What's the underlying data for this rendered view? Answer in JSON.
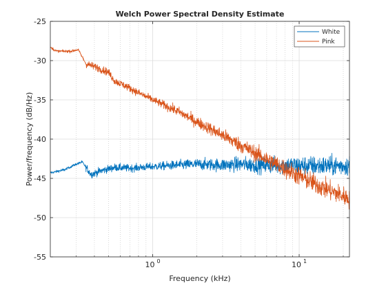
{
  "chart_data": {
    "type": "line",
    "title": "Welch Power Spectral Density Estimate",
    "xlabel": "Frequency (kHz)",
    "ylabel": "Power/frequency (dB/Hz)",
    "x_scale": "log",
    "xlim": [
      0.2,
      22.05
    ],
    "ylim": [
      -55,
      -25
    ],
    "y_ticks": [
      -25,
      -30,
      -35,
      -40,
      -45,
      -50,
      -55
    ],
    "y_tick_labels": [
      "-25",
      "-30",
      "-35",
      "-40",
      "-45",
      "-50",
      "-55"
    ],
    "x_ticks": [
      1,
      10
    ],
    "x_tick_labels": [
      {
        "base": "10",
        "exp": "0"
      },
      {
        "base": "10",
        "exp": "1"
      }
    ],
    "grid": true,
    "minor_grid": true,
    "legend_position": "top-right",
    "colors": {
      "white": "#0072BD",
      "pink": "#D95319"
    },
    "series": [
      {
        "name": "White",
        "x": [
          0.2,
          0.25,
          0.3,
          0.33,
          0.38,
          0.45,
          0.55,
          0.7,
          1,
          1.5,
          2,
          3,
          4,
          5,
          7,
          10,
          15,
          22.05
        ],
        "y": [
          -44.3,
          -43.9,
          -43.2,
          -42.9,
          -44.5,
          -44.0,
          -43.6,
          -43.7,
          -43.5,
          -43.3,
          -43.2,
          -43.3,
          -43.2,
          -43.3,
          -43.3,
          -43.4,
          -43.4,
          -43.4
        ]
      },
      {
        "name": "Pink",
        "x": [
          0.2,
          0.22,
          0.28,
          0.31,
          0.35,
          0.42,
          0.5,
          0.55,
          0.65,
          0.8,
          1,
          1.5,
          2,
          3,
          5,
          7,
          10,
          15,
          22.05
        ],
        "y": [
          -28.3,
          -28.8,
          -28.8,
          -28.6,
          -30.4,
          -30.9,
          -31.5,
          -32.6,
          -33.2,
          -34.1,
          -35.0,
          -36.5,
          -37.8,
          -39.5,
          -41.8,
          -43.2,
          -44.7,
          -46.3,
          -47.6
        ]
      }
    ]
  }
}
